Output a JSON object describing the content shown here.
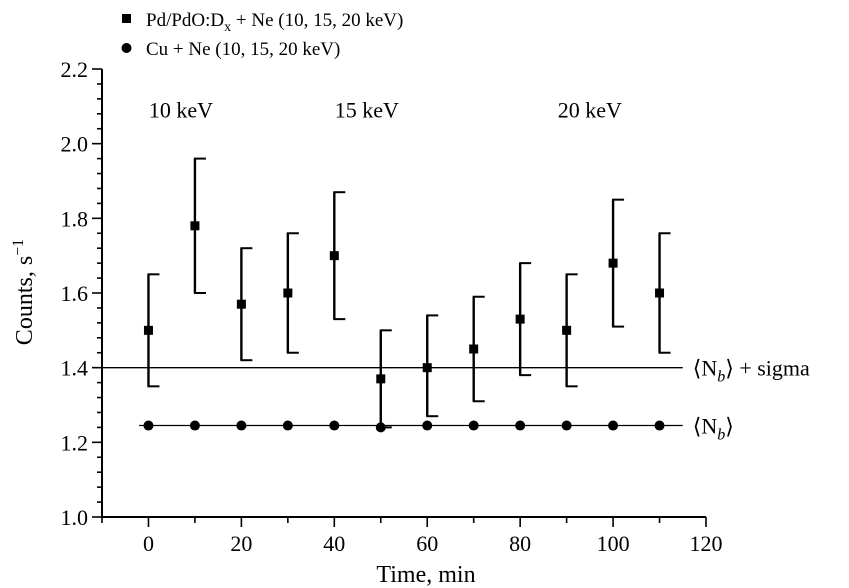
{
  "chart_data": {
    "type": "scatter",
    "xlabel": "Time, min",
    "ylabel": "Counts, s",
    "ylabel_sup": "−1",
    "xlim": [
      -10,
      120
    ],
    "ylim": [
      1.0,
      2.2
    ],
    "xticks": [
      0,
      20,
      40,
      60,
      80,
      100,
      120
    ],
    "xtick_labels": [
      "0",
      "20",
      "40",
      "60",
      "80",
      "100",
      "120"
    ],
    "yticks": [
      1.0,
      1.2,
      1.4,
      1.6,
      1.8,
      2.0,
      2.2
    ],
    "ytick_labels": [
      "1.0",
      "1.2",
      "1.4",
      "1.6",
      "1.8",
      "2.0",
      "2.2"
    ],
    "legend_placement": "top-left",
    "series": [
      {
        "name": "Pd/PdO:D",
        "name_sub": "x",
        "name_suffix": " + Ne (10, 15, 20 keV)",
        "marker": "square",
        "x": [
          0,
          10,
          20,
          30,
          40,
          50,
          60,
          70,
          80,
          90,
          100,
          110
        ],
        "y": [
          1.5,
          1.78,
          1.57,
          1.6,
          1.7,
          1.37,
          1.4,
          1.45,
          1.53,
          1.5,
          1.68,
          1.6
        ],
        "err_low": [
          1.35,
          1.6,
          1.42,
          1.44,
          1.53,
          1.24,
          1.27,
          1.31,
          1.38,
          1.35,
          1.51,
          1.44
        ],
        "err_high": [
          1.65,
          1.96,
          1.72,
          1.76,
          1.87,
          1.5,
          1.54,
          1.59,
          1.68,
          1.65,
          1.85,
          1.76
        ]
      },
      {
        "name": "Cu + Ne (10, 15, 20 keV)",
        "marker": "circle",
        "x": [
          0,
          10,
          20,
          30,
          40,
          50,
          60,
          70,
          80,
          90,
          100,
          110
        ],
        "y": [
          1.245,
          1.245,
          1.245,
          1.245,
          1.245,
          1.24,
          1.245,
          1.245,
          1.245,
          1.245,
          1.245,
          1.245
        ]
      }
    ],
    "reference_lines": [
      {
        "y": 1.4,
        "x_start": -10,
        "x_end": 115,
        "label": "⟨N",
        "label_sub": "b",
        "label_suffix": "⟩ + sigma"
      },
      {
        "y": 1.245,
        "x_start": -2,
        "x_end": 115,
        "label": "⟨N",
        "label_sub": "b",
        "label_suffix": "⟩"
      }
    ],
    "annotations": [
      {
        "text": "10 keV",
        "x": 7,
        "y": 2.07
      },
      {
        "text": "15 keV",
        "x": 47,
        "y": 2.07
      },
      {
        "text": "20 keV",
        "x": 95,
        "y": 2.07
      }
    ]
  }
}
